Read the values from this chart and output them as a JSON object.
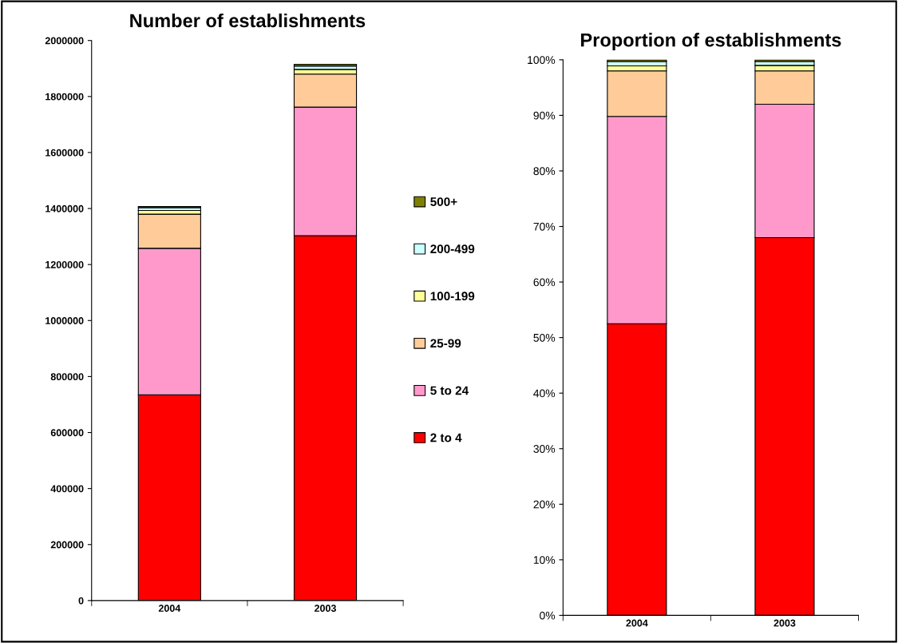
{
  "chart_data": [
    {
      "type": "bar",
      "title": "Number of establishments",
      "stacked": true,
      "categories": [
        "2004",
        "2003"
      ],
      "series": [
        {
          "name": "2 to 4",
          "color": "#ff0000",
          "values": [
            735000,
            1303000
          ]
        },
        {
          "name": "5 to 24",
          "color": "#ff99cc",
          "values": [
            523000,
            459000
          ]
        },
        {
          "name": "25-99",
          "color": "#ffcc99",
          "values": [
            122000,
            118000
          ]
        },
        {
          "name": "100-199",
          "color": "#ffff99",
          "values": [
            13000,
            17000
          ]
        },
        {
          "name": "200-499",
          "color": "#ccffff",
          "values": [
            10000,
            12000
          ]
        },
        {
          "name": "500+",
          "color": "#808000",
          "values": [
            4000,
            6000
          ]
        }
      ],
      "ylim": [
        0,
        2000000
      ],
      "yticks": [
        0,
        200000,
        400000,
        600000,
        800000,
        1000000,
        1200000,
        1400000,
        1600000,
        1800000,
        2000000
      ],
      "grid": false,
      "legend": "right"
    },
    {
      "type": "bar",
      "title": "Proportion of establishments",
      "stacked": true,
      "categories": [
        "2004",
        "2003"
      ],
      "series": [
        {
          "color": "#ff0000",
          "values": [
            52.5,
            68.0
          ]
        },
        {
          "color": "#ff99cc",
          "values": [
            37.3,
            24.0
          ]
        },
        {
          "color": "#ffcc99",
          "values": [
            8.2,
            6.0
          ]
        },
        {
          "color": "#ffff99",
          "values": [
            0.9,
            1.0
          ]
        },
        {
          "color": "#ccffff",
          "values": [
            0.8,
            0.7
          ]
        },
        {
          "color": "#808000",
          "values": [
            0.3,
            0.3
          ]
        }
      ],
      "ylim": [
        0,
        100
      ],
      "yticks": [
        {
          "value": 0,
          "label": "0%"
        },
        {
          "value": 10,
          "label": "10%"
        },
        {
          "value": 20,
          "label": "20%"
        },
        {
          "value": 30,
          "label": "30%"
        },
        {
          "value": 40,
          "label": "40%"
        },
        {
          "value": 50,
          "label": "50%"
        },
        {
          "value": 60,
          "label": "60%"
        },
        {
          "value": 70,
          "label": "70%"
        },
        {
          "value": 80,
          "label": "80%"
        },
        {
          "value": 90,
          "label": "90%"
        },
        {
          "value": 100,
          "label": "100%"
        }
      ],
      "grid": false,
      "legend": false
    }
  ]
}
